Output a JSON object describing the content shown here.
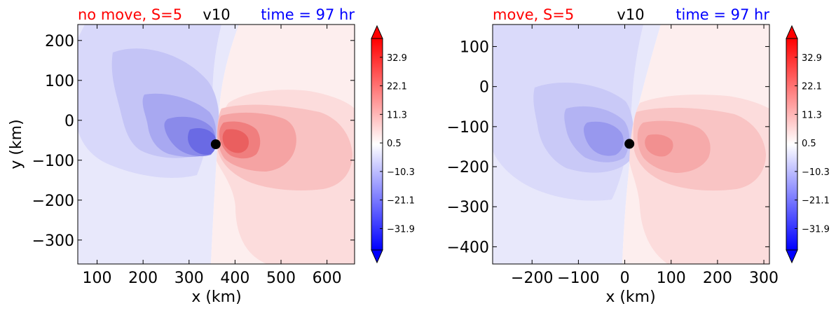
{
  "colors": {
    "neg_strong": "#0000ff",
    "neutral": "#ffffff",
    "pos_strong": "#ff0000",
    "title_left": "#ff0000",
    "title_mid": "#000000",
    "title_right": "#0000ff",
    "marker": "#000000"
  },
  "chart_data": [
    {
      "type": "heatmap",
      "title_left": "no move, S=5",
      "title_mid": "v10",
      "title_right": "time = 97 hr",
      "xlabel": "x (km)",
      "ylabel": "y (km)",
      "xlim": [
        58,
        660
      ],
      "ylim": [
        -360,
        240
      ],
      "xticks": [
        100,
        200,
        300,
        400,
        500,
        600
      ],
      "yticks": [
        200,
        100,
        0,
        -100,
        -200,
        -300
      ],
      "center_marker": {
        "x": 358,
        "y": -60
      },
      "colorbar": {
        "vmin": -40,
        "vmax": 40,
        "extend": "both",
        "tick_values": [
          32.9,
          22.1,
          11.3,
          0.5,
          -10.3,
          -21.1,
          -31.9
        ],
        "tick_labels": [
          "32.9",
          "22.1",
          "11.3",
          "0.5",
          "−10.3",
          "−21.1",
          "−31.9"
        ]
      }
    },
    {
      "type": "heatmap",
      "title_left": "move, S=5",
      "title_mid": "v10",
      "title_right": "time = 97 hr",
      "xlabel": "x (km)",
      "ylabel": "",
      "xlim": [
        -285,
        312
      ],
      "ylim": [
        -443,
        155
      ],
      "xticks": [
        -200,
        -100,
        0,
        100,
        200,
        300
      ],
      "yticks": [
        100,
        0,
        -100,
        -200,
        -300,
        -400
      ],
      "center_marker": {
        "x": 10,
        "y": -143
      },
      "colorbar": {
        "vmin": -40,
        "vmax": 40,
        "extend": "both",
        "tick_values": [
          32.9,
          22.1,
          11.3,
          0.5,
          -10.3,
          -21.1,
          -31.9
        ],
        "tick_labels": [
          "32.9",
          "22.1",
          "11.3",
          "0.5",
          "−10.3",
          "−21.1",
          "−31.9"
        ]
      }
    }
  ]
}
